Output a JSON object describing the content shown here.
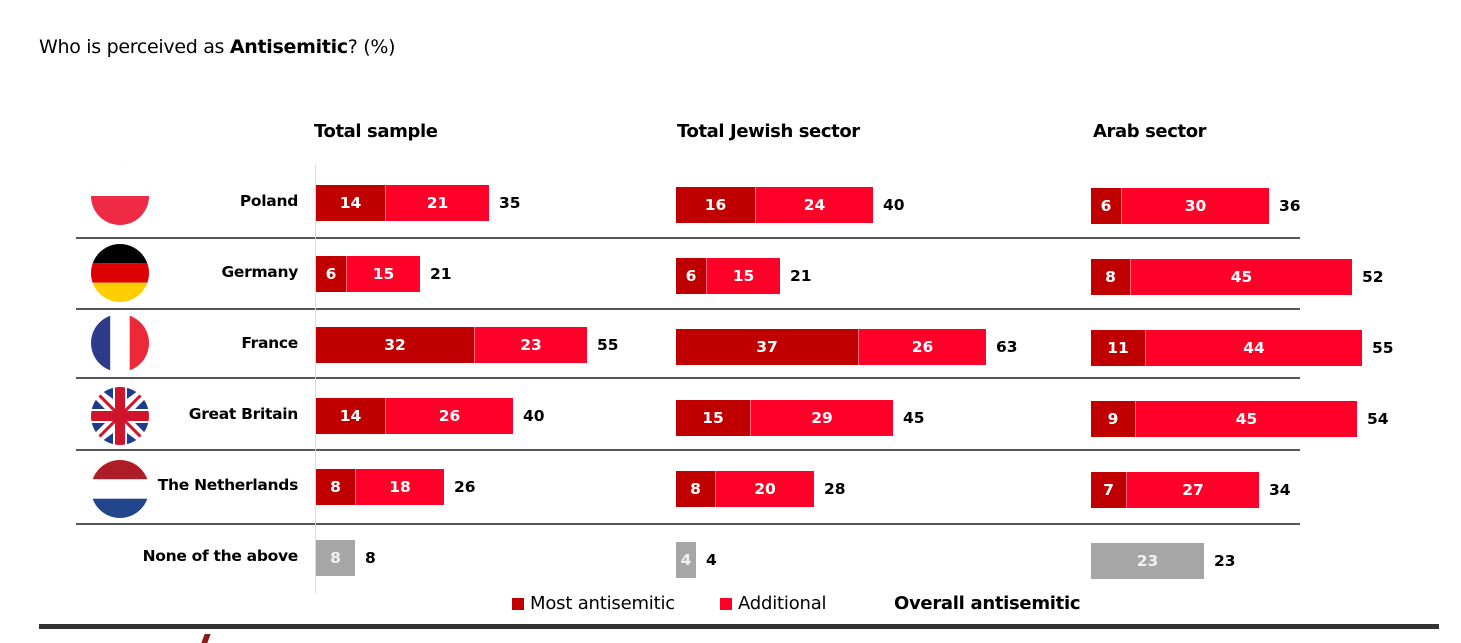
{
  "title": {
    "prefix": "Who is perceived as ",
    "bold": "Antisemitic",
    "suffix": "? (%)"
  },
  "legend": {
    "most": {
      "label": "Most antisemitic",
      "color": "#c00000"
    },
    "additional": {
      "label": "Additional",
      "color": "#ff0029"
    },
    "overall": {
      "label": "Overall antisemitic"
    }
  },
  "colors": {
    "most": "#c00000",
    "additional": "#ff0029",
    "none": "#a6a6a6",
    "separator": "#555555"
  },
  "rows": [
    {
      "label": "Poland",
      "flag": "poland-flag"
    },
    {
      "label": "Germany",
      "flag": "germany-flag"
    },
    {
      "label": "France",
      "flag": "france-flag"
    },
    {
      "label": "Great Britain",
      "flag": "great-britain-flag"
    },
    {
      "label": "The Netherlands",
      "flag": "netherlands-flag"
    },
    {
      "label": "None of the above",
      "flag": null
    }
  ],
  "chart_data": {
    "type": "bar",
    "orientation": "horizontal",
    "stacked": true,
    "title": "Who is perceived as Antisemitic? (%)",
    "categories": [
      "Poland",
      "Germany",
      "France",
      "Great Britain",
      "The Netherlands",
      "None of the above"
    ],
    "legend": [
      "Most antisemitic",
      "Additional",
      "Overall antisemitic"
    ],
    "legend_position": "bottom",
    "xlim": [
      0,
      65
    ],
    "grid": false,
    "panels": [
      {
        "name": "Total sample",
        "series": [
          {
            "name": "Most antisemitic",
            "values": [
              14,
              6,
              32,
              14,
              8,
              null
            ]
          },
          {
            "name": "Additional",
            "values": [
              21,
              15,
              23,
              26,
              18,
              null
            ]
          },
          {
            "name": "None of the above",
            "values": [
              null,
              null,
              null,
              null,
              null,
              8
            ]
          }
        ],
        "overall": [
          35,
          21,
          55,
          40,
          26,
          8
        ]
      },
      {
        "name": "Total Jewish sector",
        "series": [
          {
            "name": "Most antisemitic",
            "values": [
              16,
              6,
              37,
              15,
              8,
              null
            ]
          },
          {
            "name": "Additional",
            "values": [
              24,
              15,
              26,
              29,
              20,
              null
            ]
          },
          {
            "name": "None of the above",
            "values": [
              null,
              null,
              null,
              null,
              null,
              4
            ]
          }
        ],
        "overall": [
          40,
          21,
          63,
          45,
          28,
          4
        ]
      },
      {
        "name": "Arab sector",
        "series": [
          {
            "name": "Most antisemitic",
            "values": [
              6,
              8,
              11,
              9,
              7,
              null
            ]
          },
          {
            "name": "Additional",
            "values": [
              30,
              45,
              44,
              45,
              27,
              null
            ]
          },
          {
            "name": "None of the above",
            "values": [
              null,
              null,
              null,
              null,
              null,
              23
            ]
          }
        ],
        "overall": [
          36,
          52,
          55,
          54,
          34,
          23
        ]
      }
    ]
  }
}
